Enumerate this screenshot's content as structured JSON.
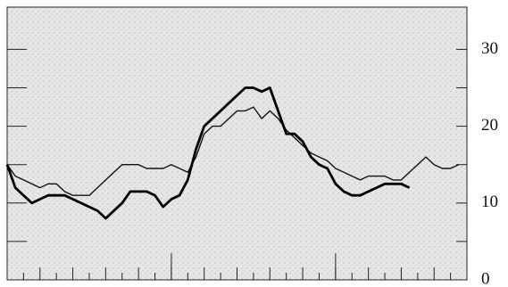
{
  "chart_data": {
    "type": "line",
    "x": [
      0,
      0.5,
      1,
      1.5,
      2,
      2.5,
      3,
      3.5,
      4,
      4.5,
      5,
      5.5,
      6,
      6.5,
      7,
      7.5,
      8,
      8.5,
      9,
      9.5,
      10,
      10.5,
      11,
      11.5,
      12,
      12.5,
      13,
      13.5,
      14,
      14.5,
      15,
      15.5,
      16,
      16.5,
      17,
      17.5,
      18,
      18.5,
      19,
      19.5,
      20,
      20.5,
      21,
      21.5,
      22,
      22.5,
      23,
      23.5,
      24,
      24.5,
      25,
      25.5,
      26,
      26.5,
      27,
      27.5
    ],
    "series": [
      {
        "color": "#111111",
        "width": 1.4,
        "values": [
          15,
          13.5,
          13,
          12.5,
          12,
          12.5,
          12.5,
          11.5,
          11,
          11,
          11,
          12,
          13,
          14,
          15,
          15,
          15,
          14.5,
          14.5,
          14.5,
          15,
          14.5,
          14,
          16,
          19,
          20,
          20,
          21,
          22,
          22,
          22.5,
          21,
          22,
          21,
          19.5,
          18.5,
          17.5,
          16.5,
          16,
          15.5,
          14.5,
          14,
          13.5,
          13,
          13.5,
          13.5,
          13.5,
          13,
          13,
          14,
          15,
          16,
          15,
          14.5,
          14.5,
          15
        ]
      },
      {
        "color": "#000000",
        "width": 2.8,
        "values": [
          15,
          12,
          11,
          10,
          10.5,
          11,
          11,
          11,
          10.5,
          10,
          9.5,
          9,
          8,
          9,
          10,
          11.5,
          11.5,
          11.5,
          11,
          9.5,
          10.5,
          11,
          13,
          17,
          20,
          21,
          22,
          23,
          24,
          25,
          25,
          24.5,
          25,
          22,
          19,
          19,
          18,
          16,
          15,
          14.5,
          12.5,
          11.5,
          11,
          11,
          11.5,
          12,
          12.5,
          12.5,
          12.5,
          12,
          null,
          null,
          null,
          null,
          null,
          null
        ]
      }
    ],
    "xlim": [
      0,
      28
    ],
    "xticks": [
      0,
      1,
      2,
      3,
      4,
      5,
      6,
      7,
      8,
      9,
      10,
      11,
      12,
      13,
      14,
      15,
      16,
      17,
      18,
      19,
      20,
      21,
      22,
      23,
      24,
      25,
      26,
      27,
      28
    ],
    "xmajor": [
      0,
      10,
      20
    ],
    "ylim": [
      0,
      35.5
    ],
    "yticks": [
      0,
      10,
      20,
      30
    ],
    "yminor": [
      5,
      15,
      25
    ]
  }
}
